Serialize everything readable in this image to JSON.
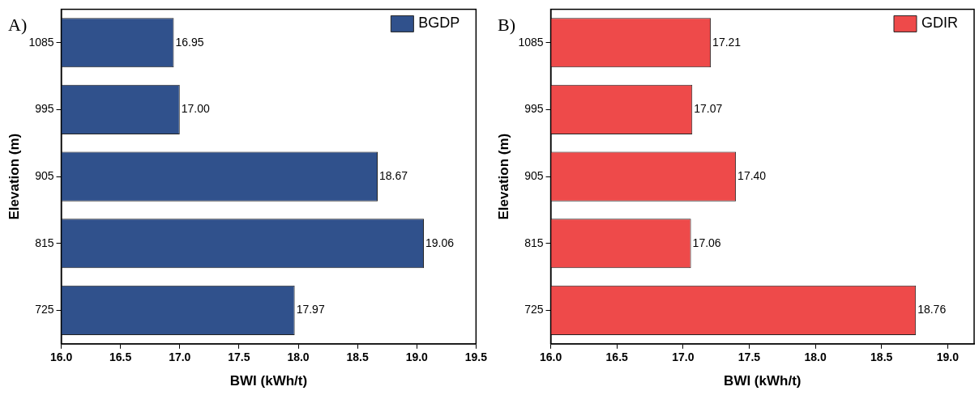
{
  "chart_data": [
    {
      "type": "bar",
      "title": "A)",
      "orientation": "horizontal",
      "xlabel": "BWI (kWh/t)",
      "ylabel": "Elevation (m)",
      "categories": [
        "1085",
        "995",
        "905",
        "815",
        "725"
      ],
      "series": [
        {
          "name": "BGDP",
          "color": "#30518c",
          "values": [
            16.95,
            17.0,
            18.67,
            19.06,
            17.97
          ],
          "value_labels": [
            "16.95",
            "17.00",
            "18.67",
            "19.06",
            "17.97"
          ]
        }
      ],
      "xlim": [
        16.0,
        19.5
      ],
      "xticks": [
        {
          "value": 16.0,
          "label": "16.0"
        },
        {
          "value": 16.5,
          "label": "16.5"
        },
        {
          "value": 17.0,
          "label": "17.0"
        },
        {
          "value": 17.5,
          "label": "17.5"
        },
        {
          "value": 18.0,
          "label": "18.0"
        },
        {
          "value": 18.5,
          "label": "18.5"
        },
        {
          "value": 19.0,
          "label": "19.0"
        },
        {
          "value": 19.5,
          "label": "19.5"
        }
      ],
      "legend": "top right",
      "grid": false
    },
    {
      "type": "bar",
      "title": "B)",
      "orientation": "horizontal",
      "xlabel": "BWI (kWh/t)",
      "ylabel": "Elevation (m)",
      "categories": [
        "1085",
        "995",
        "905",
        "815",
        "725"
      ],
      "series": [
        {
          "name": "GDIR",
          "color": "#ee4a4a",
          "values": [
            17.21,
            17.07,
            17.4,
            17.06,
            18.76
          ],
          "value_labels": [
            "17.21",
            "17.07",
            "17.40",
            "17.06",
            "18.76"
          ]
        }
      ],
      "xlim": [
        16.0,
        19.2
      ],
      "xticks": [
        {
          "value": 16.0,
          "label": "16.0"
        },
        {
          "value": 16.5,
          "label": "16.5"
        },
        {
          "value": 17.0,
          "label": "17.0"
        },
        {
          "value": 17.5,
          "label": "17.5"
        },
        {
          "value": 18.0,
          "label": "18.0"
        },
        {
          "value": 18.5,
          "label": "18.5"
        },
        {
          "value": 19.0,
          "label": "19.0"
        }
      ],
      "legend": "top right",
      "grid": false
    }
  ]
}
